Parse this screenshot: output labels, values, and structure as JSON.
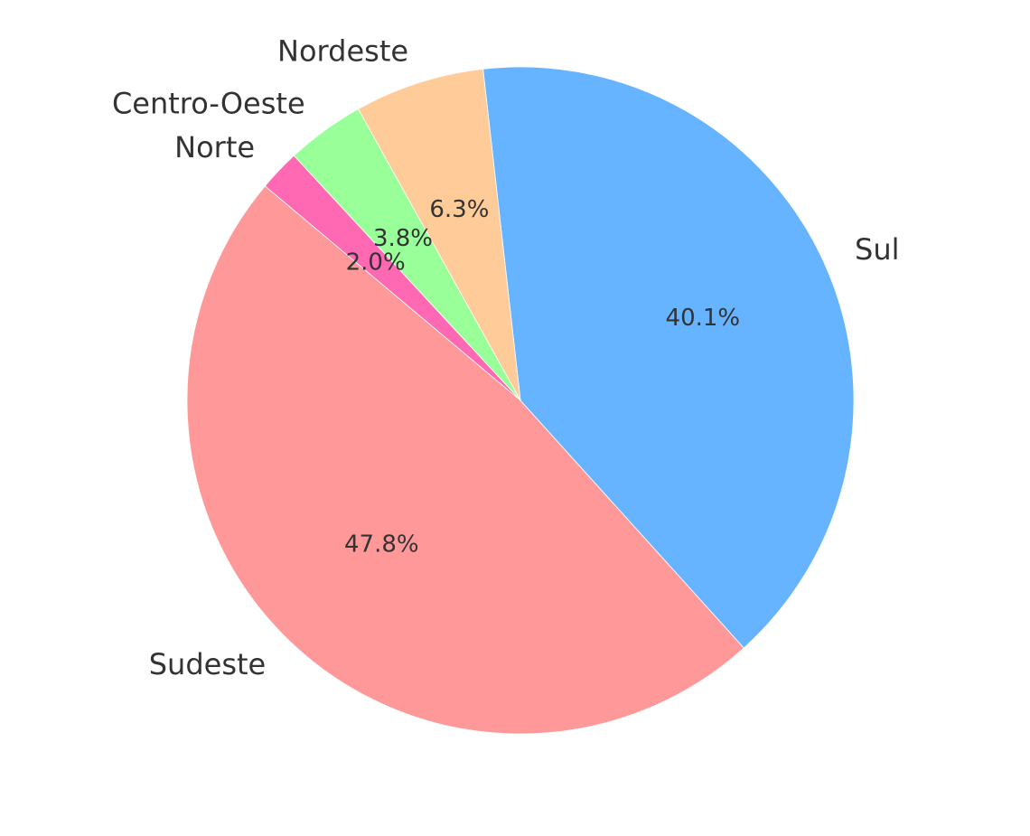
{
  "chart_data": {
    "type": "pie",
    "title": "",
    "start_angle_deg": 140,
    "direction": "counterclockwise",
    "slices": [
      {
        "label": "Sudeste",
        "value": 47.8,
        "pct_label": "47.8%",
        "color": "#ff9999"
      },
      {
        "label": "Sul",
        "value": 40.1,
        "pct_label": "40.1%",
        "color": "#66b3ff"
      },
      {
        "label": "Nordeste",
        "value": 6.3,
        "pct_label": "6.3%",
        "color": "#ffcc99"
      },
      {
        "label": "Centro-Oeste",
        "value": 3.8,
        "pct_label": "3.8%",
        "color": "#99ff99"
      },
      {
        "label": "Norte",
        "value": 2.0,
        "pct_label": "2.0%",
        "color": "#ff69b4"
      }
    ]
  }
}
